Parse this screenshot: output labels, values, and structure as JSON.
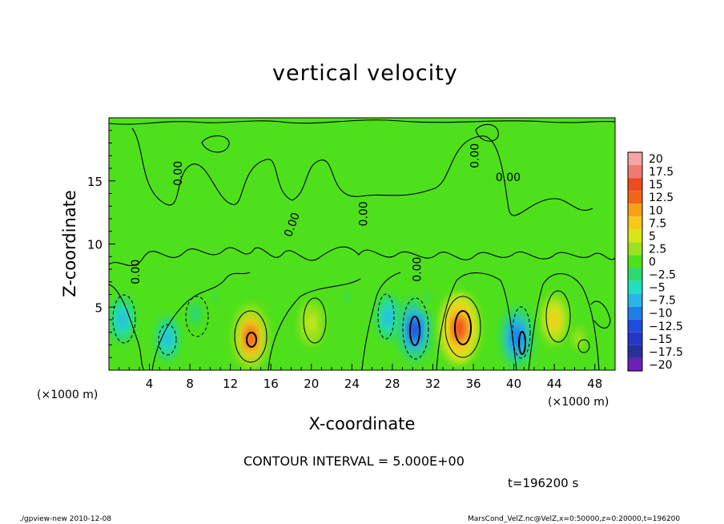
{
  "title": "vertical velocity",
  "contour_interval_text": "CONTOUR INTERVAL = 5.000E+00",
  "time_text": "t=196200 s",
  "footer_left": "./gpview-new  2010-12-08",
  "footer_right": "MarsCond_VelZ.nc@VelZ,x=0:50000,z=0:20000,t=196200",
  "colors": {
    "background_field": "#4fe01c",
    "contour_line": "#000000"
  },
  "chart_data": {
    "type": "heatmap",
    "title": "vertical velocity",
    "xlabel": "X-coordinate",
    "ylabel": "Z-coordinate",
    "x_unit": "(×1000 m)",
    "z_unit": "(×1000 m)",
    "xlim": [
      0,
      50
    ],
    "zlim": [
      0,
      20
    ],
    "x_ticks": [
      4,
      8,
      12,
      16,
      20,
      24,
      28,
      32,
      36,
      40,
      44,
      48
    ],
    "z_ticks": [
      5,
      10,
      15
    ],
    "contour_interval": 5.0,
    "contour_labels": [
      "0.00",
      "0.00",
      "0.00",
      "0.00",
      "0.00",
      "0.00",
      "0.00"
    ],
    "colorbar": {
      "levels": [
        "20",
        "17.5",
        "15",
        "12.5",
        "10",
        "7.5",
        "5",
        "2.5",
        "0",
        "-2.5",
        "-5",
        "-7.5",
        "-10",
        "-12.5",
        "-15",
        "-17.5",
        "-20"
      ],
      "colors": [
        "#f6a4a4",
        "#f07a70",
        "#f04a20",
        "#f26418",
        "#f7a118",
        "#f6c81c",
        "#d7e61a",
        "#9ce21c",
        "#4fe01c",
        "#2fd870",
        "#22dfc2",
        "#2ab5ea",
        "#1e7fe8",
        "#1f4de0",
        "#2636c6",
        "#263199",
        "#6d1fb4"
      ]
    },
    "cells": [
      {
        "x": 1.3,
        "z": 4.0,
        "value": -7.0
      },
      {
        "x": 5.8,
        "z": 2.5,
        "value": -6.5
      },
      {
        "x": 8.5,
        "z": 4.5,
        "value": -3.5
      },
      {
        "x": 14.0,
        "z": 2.6,
        "value": 12.0
      },
      {
        "x": 20.0,
        "z": 3.7,
        "value": 6.0
      },
      {
        "x": 27.6,
        "z": 4.2,
        "value": -7.0
      },
      {
        "x": 30.2,
        "z": 3.2,
        "value": -12.0
      },
      {
        "x": 34.6,
        "z": 3.3,
        "value": 14.0
      },
      {
        "x": 40.3,
        "z": 2.6,
        "value": -11.0
      },
      {
        "x": 44.0,
        "z": 4.0,
        "value": 8.0
      },
      {
        "x": 46.4,
        "z": 2.5,
        "value": 3.0
      },
      {
        "x": 10.5,
        "z": 5.8,
        "value": -2.0
      },
      {
        "x": 23.5,
        "z": 5.8,
        "value": -2.0
      },
      {
        "x": 31.5,
        "z": 5.8,
        "value": -2.0
      }
    ]
  }
}
